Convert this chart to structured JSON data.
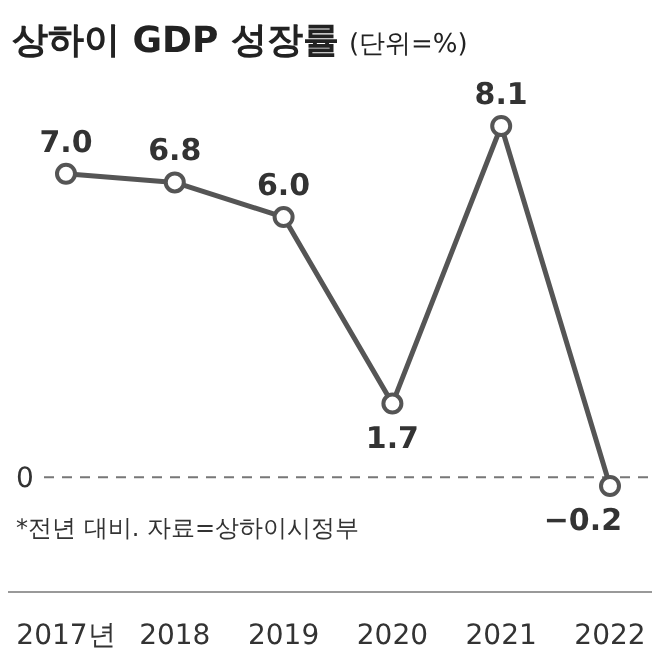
{
  "chart_data": {
    "type": "line",
    "title": "상하이 GDP 성장률",
    "subtitle": "(단위=%)",
    "categories": [
      "2017년",
      "2018",
      "2019",
      "2020",
      "2021",
      "2022"
    ],
    "series": [
      {
        "color": "#555555",
        "values": [
          7.0,
          6.8,
          6.0,
          1.7,
          8.1,
          -0.2
        ],
        "value_labels": [
          "7.0",
          "6.8",
          "6.0",
          "1.7",
          "8.1",
          "−0.2"
        ]
      }
    ],
    "tick_labels": "x",
    "marker": "circle",
    "line_style": "solid",
    "ref_lines": [
      {
        "axis": "y",
        "value": 0,
        "label": "0",
        "line_style": "dashed",
        "color": "#777777"
      }
    ],
    "annotations": [
      "*전년 대비. 자료=상하이시정부"
    ]
  }
}
